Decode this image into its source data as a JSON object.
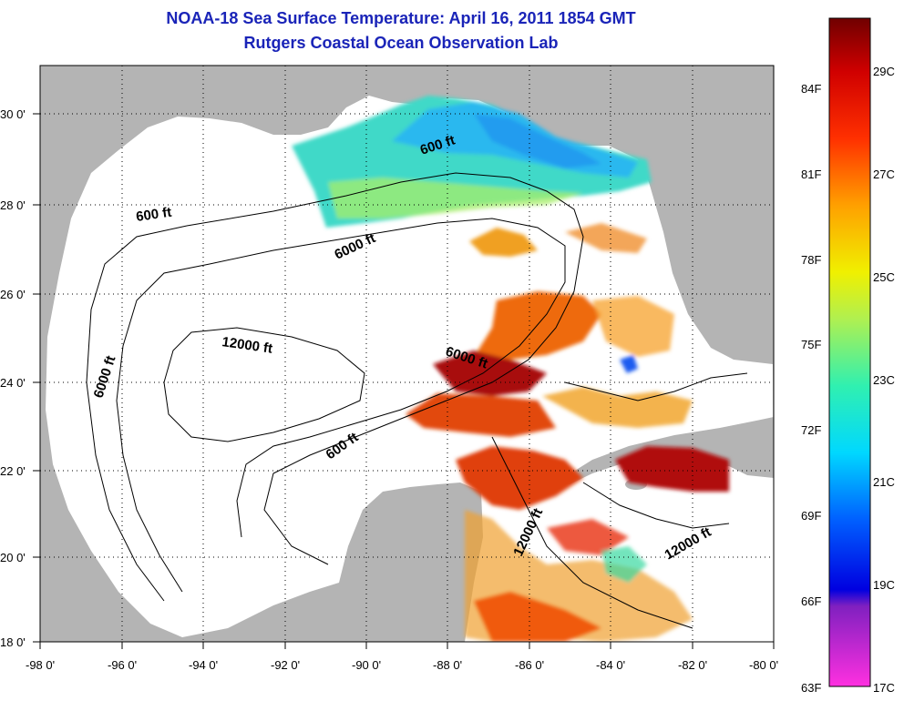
{
  "title": {
    "line1": "NOAA-18 Sea Surface Temperature:  April 16, 2011 1854 GMT",
    "line2": "Rutgers Coastal Ocean Observation Lab"
  },
  "axes": {
    "x_ticks": [
      "-98 0'",
      "-96 0'",
      "-94 0'",
      "-92 0'",
      "-90 0'",
      "-88 0'",
      "-86 0'",
      "-84 0'",
      "-82 0'",
      "-80 0'"
    ],
    "y_ticks": [
      "30 0'",
      "28 0'",
      "26 0'",
      "24 0'",
      "22 0'",
      "20 0'",
      "18 0'"
    ]
  },
  "contour_labels": [
    "600 ft",
    "600 ft",
    "6000 ft",
    "6000 ft",
    "12000 ft",
    "6000 ft",
    "600 ft",
    "12000 ft",
    "12000 ft"
  ],
  "colorbar": {
    "fahrenheit": [
      "84F",
      "81F",
      "78F",
      "75F",
      "72F",
      "69F",
      "66F",
      "63F"
    ],
    "celsius": [
      "29C",
      "27C",
      "25C",
      "23C",
      "21C",
      "19C",
      "17C"
    ]
  },
  "colors": {
    "title": "#1a24b8",
    "land": "#b4b4b4",
    "ocean": "#ffffff"
  }
}
